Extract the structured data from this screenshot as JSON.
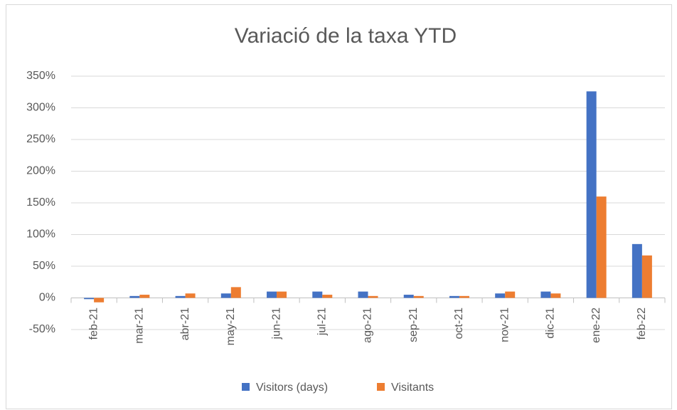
{
  "chart_data": {
    "type": "bar",
    "title": "Variació de la taxa YTD",
    "categories": [
      "feb-21",
      "mar-21",
      "abr-21",
      "may-21",
      "jun-21",
      "jul-21",
      "ago-21",
      "sep-21",
      "oct-21",
      "nov-21",
      "dic-21",
      "ene-22",
      "feb-22"
    ],
    "series": [
      {
        "name": "Visitors (days)",
        "color": "#4472c4",
        "values": [
          -2,
          3,
          3,
          7,
          10,
          10,
          10,
          5,
          3,
          7,
          10,
          326,
          85
        ]
      },
      {
        "name": "Visitants",
        "color": "#ed7d31",
        "values": [
          -7,
          5,
          7,
          17,
          10,
          5,
          3,
          3,
          3,
          10,
          7,
          160,
          67
        ]
      }
    ],
    "ylim": [
      -50,
      350
    ],
    "yticks": [
      {
        "value": -50,
        "label": "-50%"
      },
      {
        "value": 0,
        "label": "0%"
      },
      {
        "value": 50,
        "label": "50%"
      },
      {
        "value": 100,
        "label": "100%"
      },
      {
        "value": 150,
        "label": "150%"
      },
      {
        "value": 200,
        "label": "200%"
      },
      {
        "value": 250,
        "label": "250%"
      },
      {
        "value": 300,
        "label": "300%"
      },
      {
        "value": 350,
        "label": "350%"
      }
    ],
    "grid": true,
    "legend": "bottom"
  }
}
